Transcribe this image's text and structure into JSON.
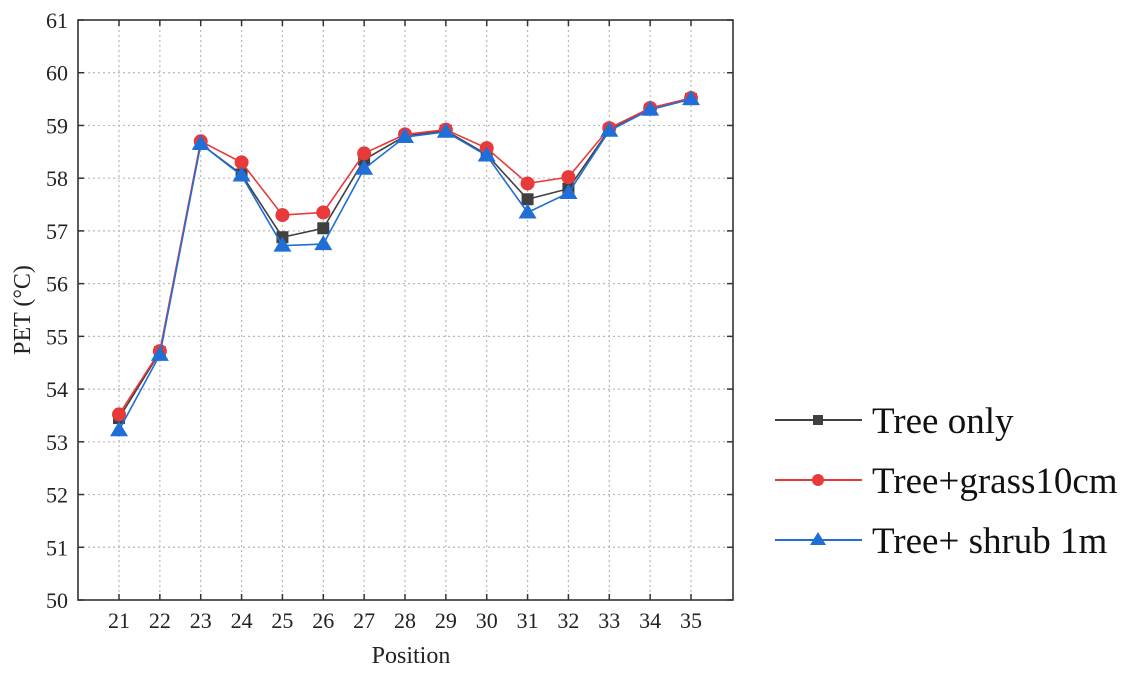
{
  "chart_data": {
    "type": "line",
    "title": "",
    "xlabel": "Position",
    "ylabel": "PET (°C)",
    "x": [
      21,
      22,
      23,
      24,
      25,
      26,
      27,
      28,
      29,
      30,
      31,
      32,
      33,
      34,
      35
    ],
    "ylim": [
      50,
      61
    ],
    "yticks": [
      50,
      51,
      52,
      53,
      54,
      55,
      56,
      57,
      58,
      59,
      60,
      61
    ],
    "grid": true,
    "legend_position": "right",
    "series": [
      {
        "name": "Tree only",
        "color": "#404040",
        "marker": "square",
        "values": [
          53.45,
          54.7,
          58.65,
          58.07,
          56.88,
          57.05,
          58.35,
          58.8,
          58.9,
          58.45,
          57.6,
          57.8,
          58.92,
          59.3,
          59.5
        ]
      },
      {
        "name": "Tree+grass10cm",
        "color": "#e83a3a",
        "marker": "circle",
        "values": [
          53.52,
          54.72,
          58.7,
          58.3,
          57.3,
          57.35,
          58.47,
          58.83,
          58.92,
          58.57,
          57.9,
          58.02,
          58.95,
          59.33,
          59.52
        ]
      },
      {
        "name": "Tree+ shrub 1m",
        "color": "#1f6fd6",
        "marker": "triangle",
        "values": [
          53.22,
          54.65,
          58.65,
          58.05,
          56.72,
          56.75,
          58.18,
          58.78,
          58.88,
          58.43,
          57.35,
          57.72,
          58.9,
          59.3,
          59.5
        ]
      }
    ]
  }
}
